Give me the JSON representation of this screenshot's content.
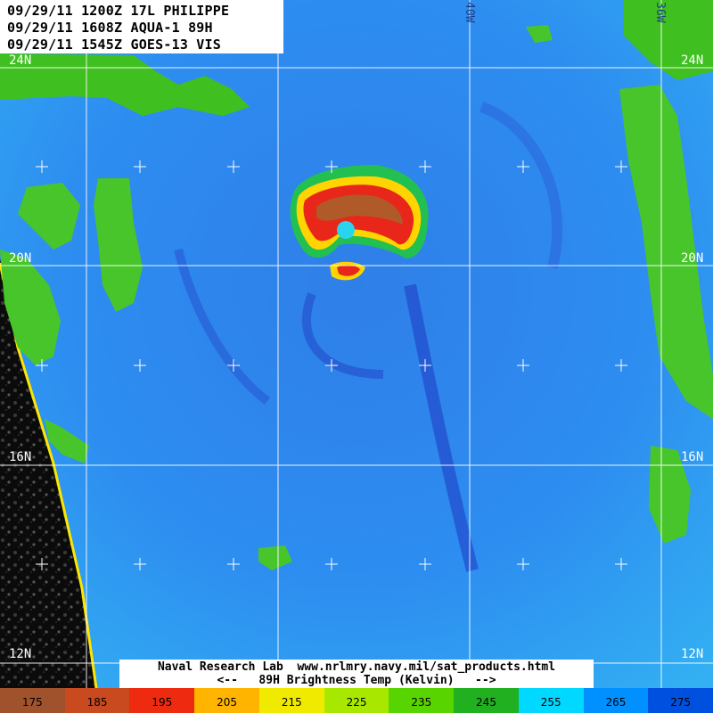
{
  "header": {
    "line1": "09/29/11 1200Z 17L PHILIPPE",
    "line2": "09/29/11 1608Z AQUA-1 89H",
    "line3": "09/29/11 1545Z GOES-13 VIS"
  },
  "map": {
    "lat_labels": [
      "24N",
      "20N",
      "16N",
      "12N"
    ],
    "lon_labels": [
      "40W",
      "36W"
    ],
    "coastline_color": "#ffe600",
    "grid_color": "#ffffff"
  },
  "footer": {
    "credit": "Naval Research Lab  www.nrlmry.navy.mil/sat_products.html",
    "legend_title": "<--   89H Brightness Temp (Kelvin)   -->"
  },
  "color_scale": {
    "ticks": [
      "175",
      "185",
      "195",
      "205",
      "215",
      "225",
      "235",
      "245",
      "255",
      "265",
      "275"
    ],
    "colors": [
      "#a0522d",
      "#c84a1e",
      "#ee2a10",
      "#ffb400",
      "#f0ea00",
      "#a8e800",
      "#58d400",
      "#20b020",
      "#00d8ff",
      "#0090ff",
      "#0050e0"
    ]
  }
}
